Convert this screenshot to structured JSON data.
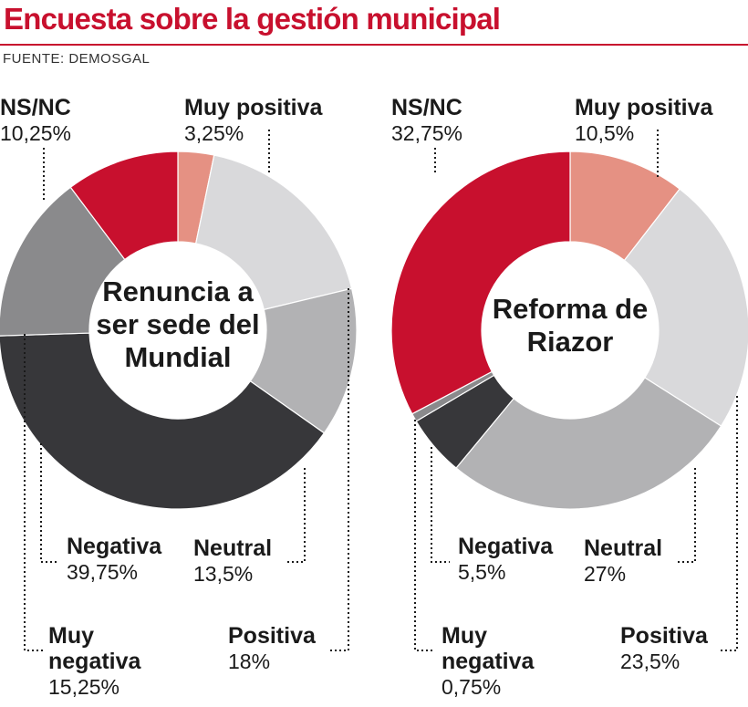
{
  "header": {
    "title": "Encuesta sobre la gestión municipal",
    "source": "FUENTE: DEMOSGAL"
  },
  "colors": {
    "accent": "#c8102e",
    "muy_positiva": "#e59183",
    "positiva": "#d9d9db",
    "neutral": "#b2b2b4",
    "negativa": "#37373a",
    "muy_negativa": "#8a8a8c",
    "ns_nc": "#c8102e"
  },
  "chart_data": [
    {
      "type": "pie",
      "title": "Renuncia a ser sede del Mundial",
      "title_lines": [
        "Renuncia a",
        "ser sede del",
        "Mundial"
      ],
      "categories": [
        "Muy positiva",
        "Positiva",
        "Neutral",
        "Negativa",
        "Muy negativa",
        "NS/NC"
      ],
      "values": [
        3.25,
        18,
        13.5,
        39.75,
        15.25,
        10.25
      ],
      "value_labels": [
        "3,25%",
        "18%",
        "13,5%",
        "39,75%",
        "15,25%",
        "10,25%"
      ],
      "name_labels": [
        "Muy positiva",
        "Positiva",
        "Neutral",
        "Negativa",
        "Muy\nnegativa",
        "NS/NC"
      ]
    },
    {
      "type": "pie",
      "title": "Reforma de Riazor",
      "title_lines": [
        "Reforma de",
        "Riazor"
      ],
      "categories": [
        "Muy positiva",
        "Positiva",
        "Neutral",
        "Negativa",
        "Muy negativa",
        "NS/NC"
      ],
      "values": [
        10.5,
        23.5,
        27,
        5.5,
        0.75,
        32.75
      ],
      "value_labels": [
        "10,5%",
        "23,5%",
        "27%",
        "5,5%",
        "0,75%",
        "32,75%"
      ],
      "name_labels": [
        "Muy positiva",
        "Positiva",
        "Neutral",
        "Negativa",
        "Muy\nnegativa",
        "NS/NC"
      ]
    }
  ]
}
